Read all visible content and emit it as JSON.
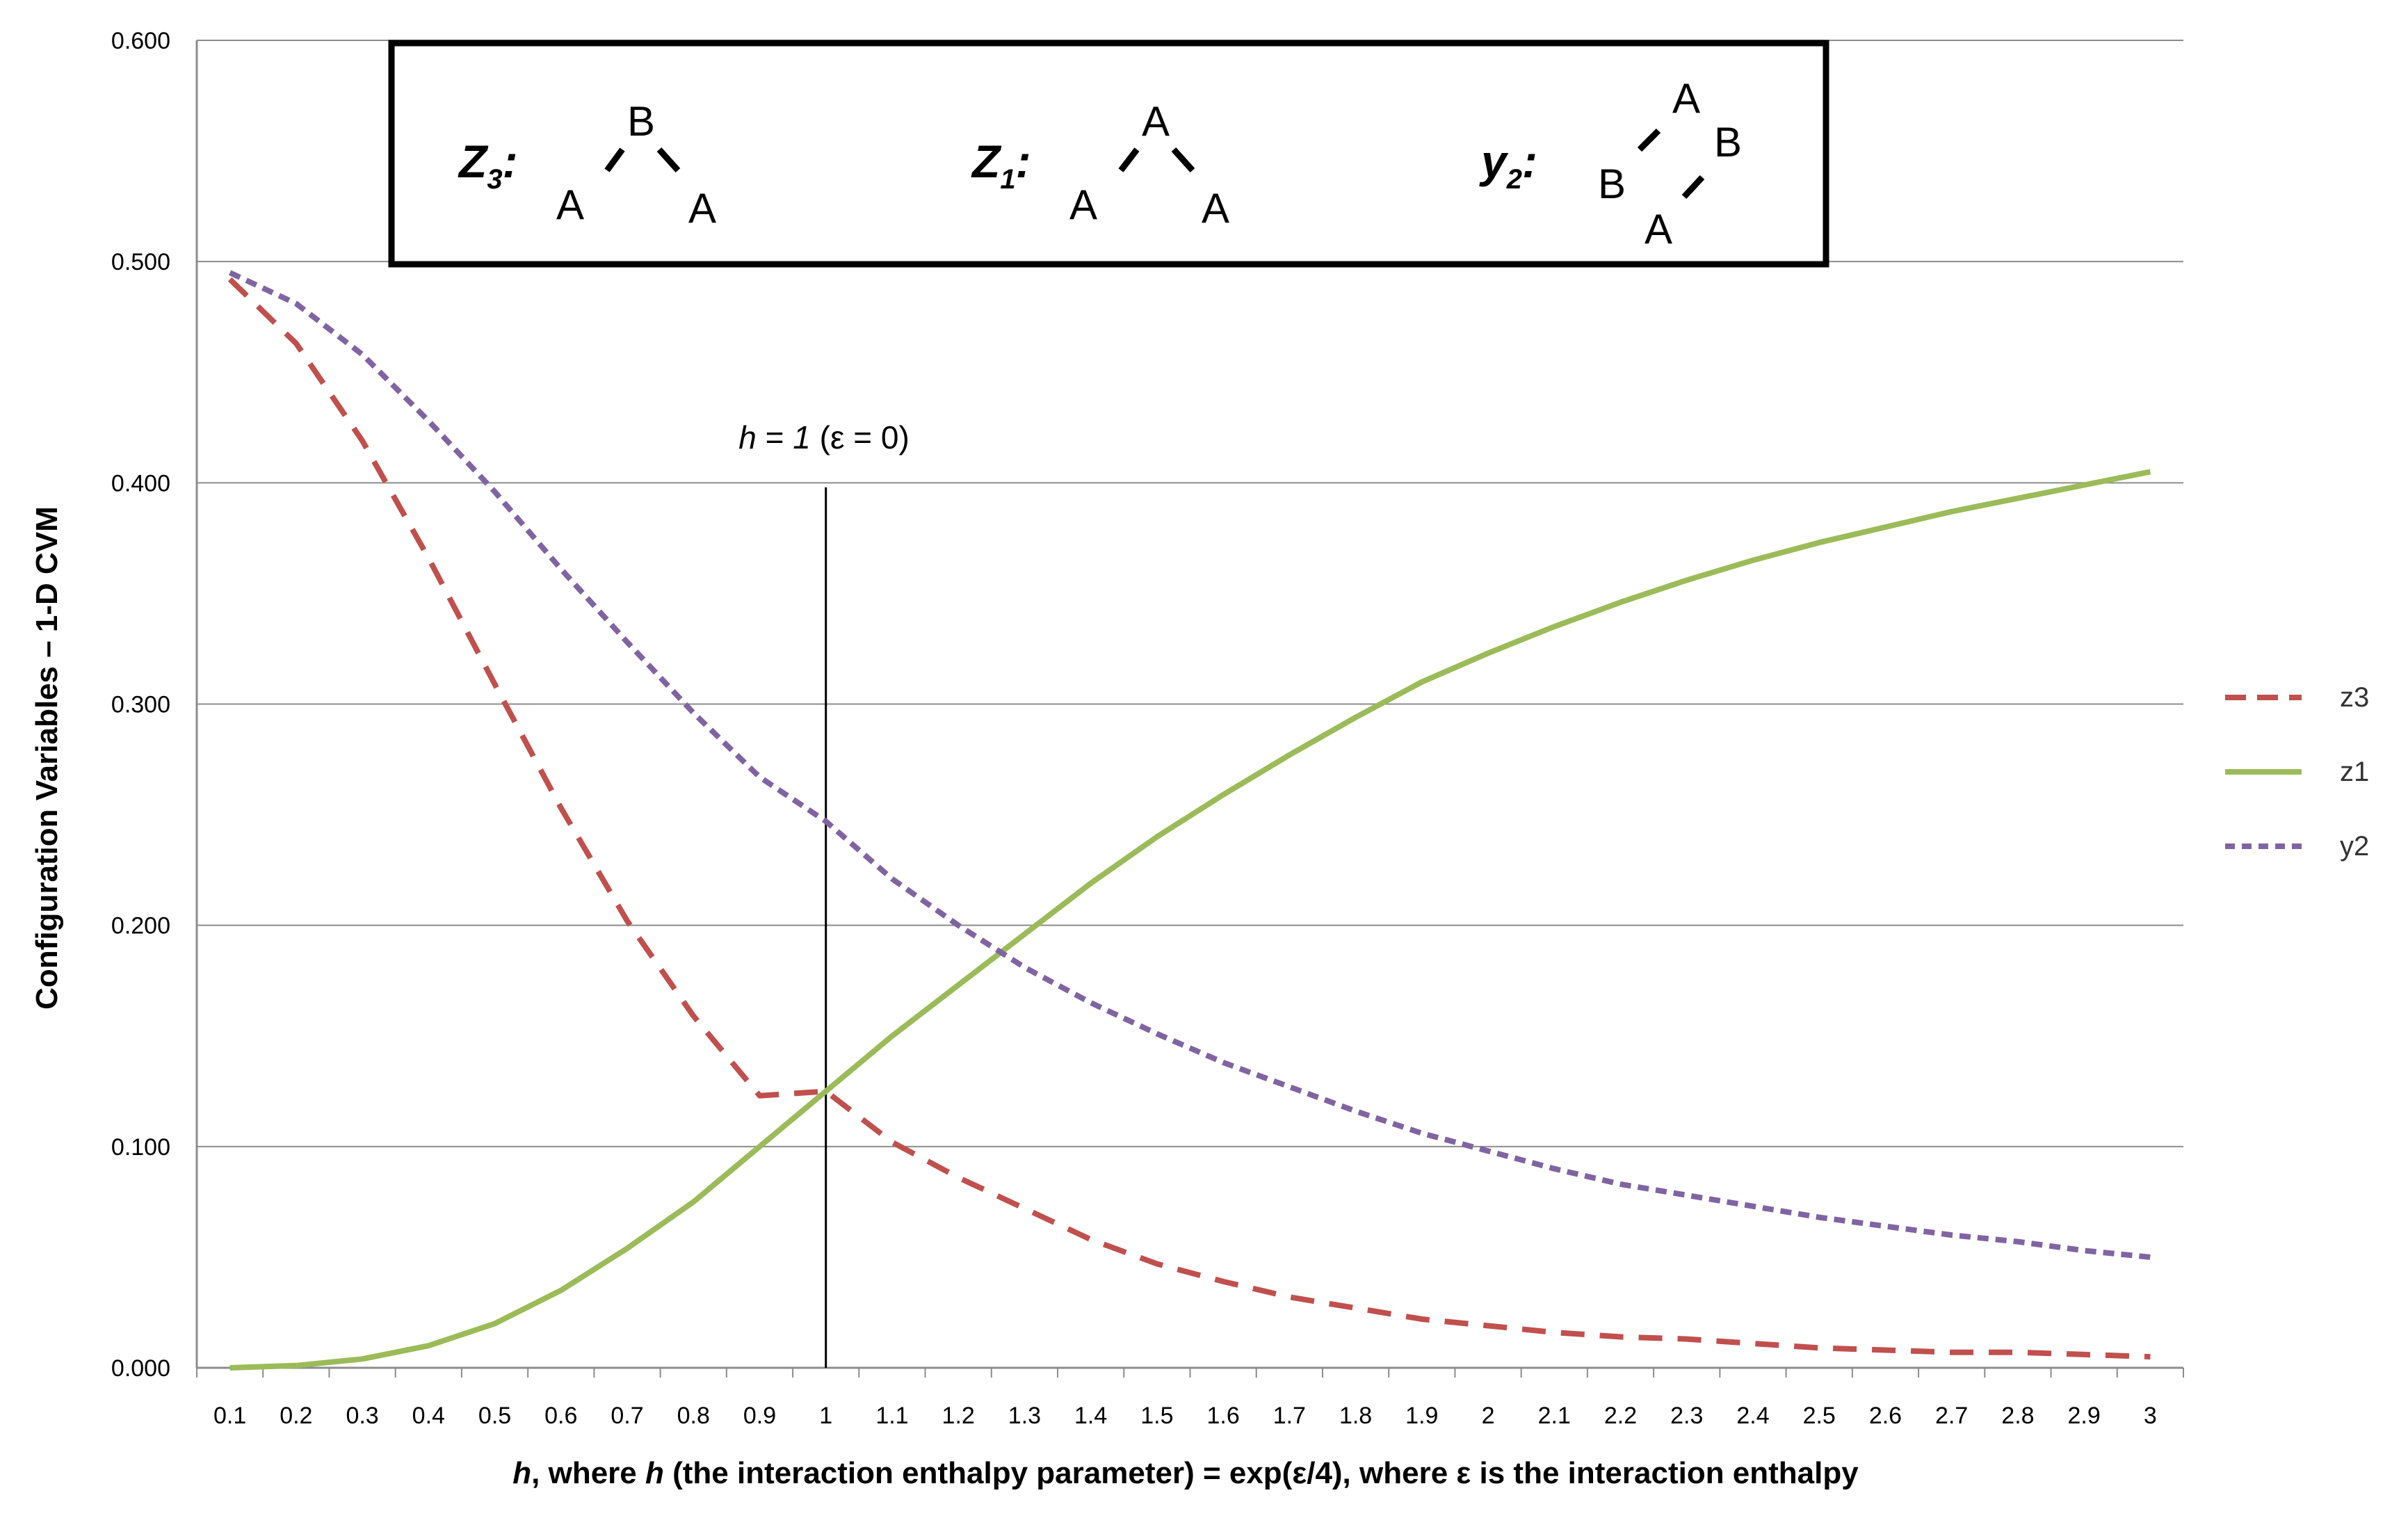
{
  "chart_data": {
    "type": "line",
    "title": "",
    "xlabel_parts": [
      "h",
      ", where ",
      "h",
      " (the interaction enthalpy parameter) = exp(ε/4), where ε is the interaction enthalpy"
    ],
    "ylabel": "Configuration Variables – 1-D CVM",
    "ylim": [
      0,
      0.6
    ],
    "yticks": [
      "0.000",
      "0.100",
      "0.200",
      "0.300",
      "0.400",
      "0.500",
      "0.600"
    ],
    "x": [
      0.1,
      0.2,
      0.3,
      0.4,
      0.5,
      0.6,
      0.7,
      0.8,
      0.9,
      1,
      1.1,
      1.2,
      1.3,
      1.4,
      1.5,
      1.6,
      1.7,
      1.8,
      1.9,
      2,
      2.1,
      2.2,
      2.3,
      2.4,
      2.5,
      2.6,
      2.7,
      2.8,
      2.9,
      3
    ],
    "xtick_labels": [
      "0.1",
      "0.2",
      "0.3",
      "0.4",
      "0.5",
      "0.6",
      "0.7",
      "0.8",
      "0.9",
      "1",
      "1.1",
      "1.2",
      "1.3",
      "1.4",
      "1.5",
      "1.6",
      "1.7",
      "1.8",
      "1.9",
      "2",
      "2.1",
      "2.2",
      "2.3",
      "2.4",
      "2.5",
      "2.6",
      "2.7",
      "2.8",
      "2.9",
      "3"
    ],
    "grid": "horizontal",
    "legend_position": "right",
    "series": [
      {
        "name": "z3",
        "color": "#c0504d",
        "dash": "long-dash",
        "values": [
          0.492,
          0.463,
          0.419,
          0.366,
          0.309,
          0.253,
          0.202,
          0.159,
          0.123,
          0.125,
          0.102,
          0.086,
          0.072,
          0.058,
          0.047,
          0.039,
          0.032,
          0.027,
          0.022,
          0.019,
          0.016,
          0.014,
          0.013,
          0.011,
          0.009,
          0.008,
          0.007,
          0.007,
          0.006,
          0.005
        ]
      },
      {
        "name": "z1",
        "color": "#9bbb59",
        "dash": "solid",
        "values": [
          0.0,
          0.001,
          0.004,
          0.01,
          0.02,
          0.035,
          0.054,
          0.075,
          0.1,
          0.125,
          0.15,
          0.173,
          0.196,
          0.219,
          0.24,
          0.259,
          0.277,
          0.294,
          0.31,
          0.323,
          0.335,
          0.346,
          0.356,
          0.365,
          0.373,
          0.38,
          0.387,
          0.393,
          0.399,
          0.405
        ]
      },
      {
        "name": "y2",
        "color": "#8064a2",
        "dash": "short-dash",
        "values": [
          0.495,
          0.481,
          0.458,
          0.428,
          0.396,
          0.361,
          0.328,
          0.296,
          0.267,
          0.247,
          0.221,
          0.2,
          0.181,
          0.165,
          0.151,
          0.138,
          0.127,
          0.116,
          0.106,
          0.098,
          0.09,
          0.083,
          0.078,
          0.073,
          0.068,
          0.064,
          0.06,
          0.057,
          0.053,
          0.05
        ]
      }
    ],
    "vline": {
      "x": 1,
      "y_top": 0.398,
      "label_parts": [
        "h",
        " = ",
        "1",
        "  (ε = 0)"
      ]
    },
    "structures": [
      {
        "label": "Z",
        "sub": "3",
        "top": "B",
        "left": "A",
        "right": "A"
      },
      {
        "label": "Z",
        "sub": "1",
        "top": "A",
        "left": "A",
        "right": "A"
      },
      {
        "label": "y",
        "sub": "2",
        "top": "A",
        "right": "B",
        "left": "B",
        "bottom": "A"
      }
    ]
  }
}
